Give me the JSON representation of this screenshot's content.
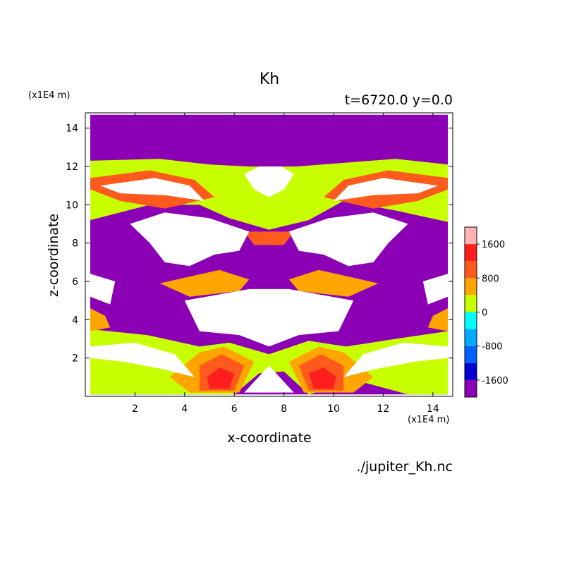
{
  "chart_data": {
    "type": "heatmap",
    "title": "Kh",
    "subtitle": "t=6720.0 y=0.0",
    "xlabel": "x-coordinate",
    "ylabel": "z-coordinate",
    "x_unit": "(x1E4 m)",
    "z_unit": "(x1E4 m)",
    "source": "./jupiter_Kh.nc",
    "xlim": [
      0,
      14.8
    ],
    "ylim": [
      0,
      14.8
    ],
    "x_ticks": [
      2,
      4,
      6,
      8,
      10,
      12,
      14
    ],
    "y_ticks": [
      2,
      4,
      6,
      8,
      10,
      12,
      14
    ],
    "colorbar": {
      "levels": [
        -2000,
        -1600,
        -1200,
        -800,
        -400,
        0,
        400,
        800,
        1200,
        1600,
        2000
      ],
      "colors": [
        "#8b00b5",
        "#0000d2",
        "#0060ff",
        "#00aaff",
        "#00ffff",
        "#c8ff00",
        "#ffa500",
        "#ff5a1e",
        "#ff1e1e",
        "#ffb4b4"
      ],
      "tick_labels": [
        "-1600",
        "-800",
        "0",
        "800",
        "1600"
      ],
      "tick_values": [
        -1600,
        -800,
        0,
        800,
        1600
      ]
    },
    "regions": [
      {
        "level": 1,
        "coords": [
          [
            0.2,
            14.7
          ],
          [
            14.6,
            14.7
          ],
          [
            14.6,
            0.1
          ],
          [
            0.2,
            0.1
          ]
        ]
      },
      {
        "level": 6,
        "coords": [
          [
            0.2,
            12.3
          ],
          [
            3,
            12.4
          ],
          [
            5,
            12.1
          ],
          [
            6.6,
            12.0
          ],
          [
            8.5,
            12.0
          ],
          [
            10.5,
            12.2
          ],
          [
            12.5,
            12.4
          ],
          [
            14.6,
            12.1
          ],
          [
            14.6,
            9.1
          ],
          [
            12.5,
            9.7
          ],
          [
            10.4,
            10.2
          ],
          [
            9,
            9.2
          ],
          [
            7.4,
            8.7
          ],
          [
            5.8,
            9.3
          ],
          [
            4.6,
            10.0
          ],
          [
            2.6,
            10.0
          ],
          [
            0.2,
            9.2
          ]
        ]
      },
      {
        "level": 6,
        "coords": [
          [
            0.2,
            3.5
          ],
          [
            2.5,
            3.2
          ],
          [
            4.6,
            2.6
          ],
          [
            5.8,
            2.8
          ],
          [
            7.4,
            2.2
          ],
          [
            9,
            2.9
          ],
          [
            10.5,
            2.6
          ],
          [
            12.5,
            3.0
          ],
          [
            14.6,
            3.4
          ],
          [
            14.6,
            0.1
          ],
          [
            13,
            0.1
          ],
          [
            11,
            0.8
          ],
          [
            9,
            0.1
          ],
          [
            8,
            1.3
          ],
          [
            7,
            1.2
          ],
          [
            6,
            0.1
          ],
          [
            0.2,
            0.1
          ]
        ]
      },
      {
        "level": 7,
        "coords": [
          [
            4.2,
            0.2
          ],
          [
            6.2,
            0.2
          ],
          [
            6.8,
            1.8
          ],
          [
            5.6,
            2.6
          ],
          [
            4.6,
            2.3
          ],
          [
            3.4,
            1.0
          ]
        ]
      },
      {
        "level": 7,
        "coords": [
          [
            8.8,
            0.2
          ],
          [
            10.8,
            0.2
          ],
          [
            11.6,
            1.0
          ],
          [
            10.4,
            2.3
          ],
          [
            9.4,
            2.6
          ],
          [
            8.2,
            1.8
          ]
        ]
      },
      {
        "level": 8,
        "coords": [
          [
            4.6,
            0.3
          ],
          [
            6.0,
            0.3
          ],
          [
            6.4,
            1.6
          ],
          [
            5.5,
            2.2
          ],
          [
            4.6,
            1.6
          ]
        ]
      },
      {
        "level": 8,
        "coords": [
          [
            9.0,
            0.3
          ],
          [
            10.4,
            0.3
          ],
          [
            10.4,
            1.6
          ],
          [
            9.5,
            2.2
          ],
          [
            8.6,
            1.6
          ]
        ]
      },
      {
        "level": 9,
        "coords": [
          [
            5.0,
            0.4
          ],
          [
            5.8,
            0.4
          ],
          [
            6.0,
            1.2
          ],
          [
            5.4,
            1.5
          ],
          [
            4.9,
            1.0
          ]
        ]
      },
      {
        "level": 9,
        "coords": [
          [
            9.2,
            0.4
          ],
          [
            10.0,
            0.4
          ],
          [
            10.1,
            1.0
          ],
          [
            9.6,
            1.5
          ],
          [
            9.0,
            1.2
          ]
        ]
      },
      {
        "level": 8,
        "coords": [
          [
            0.2,
            11.4
          ],
          [
            2.6,
            11.8
          ],
          [
            4.4,
            11.3
          ],
          [
            5.2,
            10.4
          ],
          [
            3.2,
            9.8
          ],
          [
            1.4,
            10.2
          ],
          [
            0.2,
            10.8
          ]
        ]
      },
      {
        "level": 8,
        "coords": [
          [
            14.6,
            11.4
          ],
          [
            12.2,
            11.8
          ],
          [
            10.4,
            11.3
          ],
          [
            9.6,
            10.4
          ],
          [
            11.6,
            9.8
          ],
          [
            13.4,
            10.2
          ],
          [
            14.6,
            10.8
          ]
        ]
      },
      {
        "level": 8,
        "coords": [
          [
            6.4,
            8.6
          ],
          [
            8.4,
            8.6
          ],
          [
            8.0,
            7.9
          ],
          [
            6.8,
            7.9
          ]
        ]
      },
      {
        "level": 7,
        "coords": [
          [
            3.0,
            5.9
          ],
          [
            5.4,
            6.6
          ],
          [
            6.6,
            6.1
          ],
          [
            6.2,
            5.5
          ],
          [
            4.2,
            5.2
          ]
        ]
      },
      {
        "level": 7,
        "coords": [
          [
            11.8,
            5.9
          ],
          [
            9.4,
            6.6
          ],
          [
            8.2,
            6.1
          ],
          [
            8.6,
            5.5
          ],
          [
            10.6,
            5.2
          ]
        ]
      },
      {
        "level": 7,
        "coords": [
          [
            0.2,
            4.6
          ],
          [
            0.8,
            4.2
          ],
          [
            1.0,
            3.6
          ],
          [
            0.2,
            3.4
          ]
        ]
      },
      {
        "level": 7,
        "coords": [
          [
            14.6,
            4.6
          ],
          [
            14.0,
            4.2
          ],
          [
            13.8,
            3.6
          ],
          [
            14.6,
            3.4
          ]
        ]
      },
      {
        "level": 10,
        "coords": [
          [
            0.6,
            11.0
          ],
          [
            2.8,
            11.4
          ],
          [
            4.2,
            11.0
          ],
          [
            4.8,
            10.2
          ],
          [
            3.2,
            10.5
          ],
          [
            1.4,
            10.6
          ]
        ]
      },
      {
        "level": 10,
        "coords": [
          [
            14.2,
            11.0
          ],
          [
            12.0,
            11.4
          ],
          [
            10.6,
            11.0
          ],
          [
            10.0,
            10.2
          ],
          [
            11.6,
            10.5
          ],
          [
            13.4,
            10.6
          ]
        ]
      },
      {
        "level": 10,
        "coords": [
          [
            6.4,
            11.6
          ],
          [
            7.0,
            12.0
          ],
          [
            7.9,
            12.0
          ],
          [
            8.4,
            11.6
          ],
          [
            8.0,
            10.8
          ],
          [
            7.4,
            10.4
          ],
          [
            6.8,
            10.8
          ]
        ]
      },
      {
        "level": 10,
        "coords": [
          [
            1.8,
            9.0
          ],
          [
            3.2,
            9.6
          ],
          [
            5.0,
            9.3
          ],
          [
            6.6,
            8.6
          ],
          [
            6.2,
            7.6
          ],
          [
            5.2,
            7.4
          ],
          [
            4.2,
            6.8
          ],
          [
            3.2,
            7.0
          ],
          [
            2.6,
            8.0
          ]
        ]
      },
      {
        "level": 10,
        "coords": [
          [
            13.0,
            9.0
          ],
          [
            11.6,
            9.6
          ],
          [
            9.8,
            9.3
          ],
          [
            8.2,
            8.6
          ],
          [
            8.6,
            7.6
          ],
          [
            9.6,
            7.4
          ],
          [
            10.6,
            6.8
          ],
          [
            11.6,
            7.0
          ],
          [
            12.2,
            8.0
          ]
        ]
      },
      {
        "level": 10,
        "coords": [
          [
            0.2,
            6.4
          ],
          [
            1.2,
            6.0
          ],
          [
            1.0,
            4.8
          ],
          [
            0.2,
            5.2
          ]
        ]
      },
      {
        "level": 10,
        "coords": [
          [
            14.6,
            6.4
          ],
          [
            13.6,
            6.0
          ],
          [
            13.8,
            4.8
          ],
          [
            14.6,
            5.2
          ]
        ]
      },
      {
        "level": 10,
        "coords": [
          [
            4.0,
            5.0
          ],
          [
            6.6,
            5.6
          ],
          [
            8.2,
            5.6
          ],
          [
            10.8,
            5.0
          ],
          [
            10.2,
            3.4
          ],
          [
            8.6,
            3.2
          ],
          [
            7.4,
            2.6
          ],
          [
            6.2,
            3.2
          ],
          [
            4.6,
            3.4
          ]
        ]
      },
      {
        "level": 10,
        "coords": [
          [
            0.2,
            2.6
          ],
          [
            2.0,
            2.8
          ],
          [
            3.6,
            2.2
          ],
          [
            4.4,
            1.0
          ],
          [
            3.2,
            1.4
          ],
          [
            1.6,
            1.8
          ],
          [
            0.2,
            2.0
          ]
        ]
      },
      {
        "level": 10,
        "coords": [
          [
            14.6,
            2.6
          ],
          [
            12.8,
            2.8
          ],
          [
            11.2,
            2.2
          ],
          [
            10.4,
            1.0
          ],
          [
            11.6,
            1.4
          ],
          [
            13.2,
            1.8
          ],
          [
            14.6,
            2.0
          ]
        ]
      },
      {
        "level": 10,
        "coords": [
          [
            6.4,
            0.2
          ],
          [
            7.4,
            1.6
          ],
          [
            8.4,
            0.2
          ]
        ]
      }
    ]
  }
}
